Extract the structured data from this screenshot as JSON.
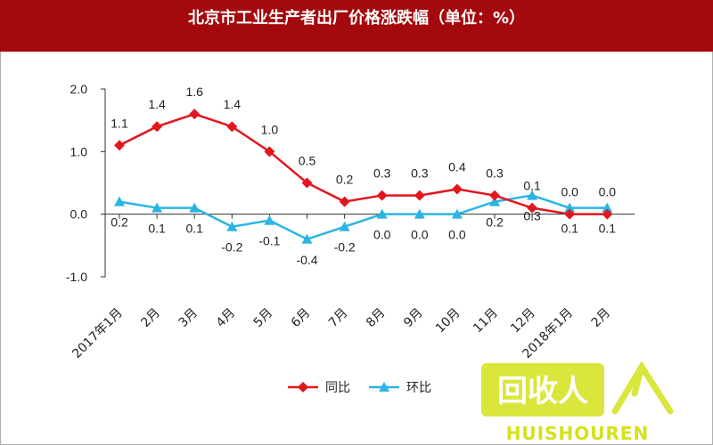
{
  "chart_data": {
    "type": "line",
    "title": "北京市工业生产者出厂价格涨跌幅（单位：%）",
    "categories": [
      "2017年1月",
      "2月",
      "3月",
      "4月",
      "5月",
      "6月",
      "7月",
      "8月",
      "9月",
      "10月",
      "11月",
      "12月",
      "2018年1月",
      "2月"
    ],
    "series": [
      {
        "name": "同比",
        "color": "#e2161e",
        "marker": "diamond",
        "values": [
          1.1,
          1.4,
          1.6,
          1.4,
          1.0,
          0.5,
          0.2,
          0.3,
          0.3,
          0.4,
          0.3,
          0.1,
          0.0,
          0.0
        ],
        "labels": [
          "1.1",
          "1.4",
          "1.6",
          "1.4",
          "1.0",
          "0.5",
          "0.2",
          "0.3",
          "0.3",
          "0.4",
          "0.3",
          "0.1",
          "0.0",
          "0.0"
        ]
      },
      {
        "name": "环比",
        "color": "#2ab5e3",
        "marker": "triangle",
        "values": [
          0.2,
          0.1,
          0.1,
          -0.2,
          -0.1,
          -0.4,
          -0.2,
          0.0,
          0.0,
          0.0,
          0.2,
          0.3,
          0.1,
          0.1
        ],
        "labels": [
          "0.2",
          "0.1",
          "0.1",
          "-0.2",
          "-0.1",
          "-0.4",
          "-0.2",
          "0.0",
          "0.0",
          "0.0",
          "0.2",
          "0.3",
          "0.1",
          "0.1"
        ]
      }
    ],
    "yticks": [
      "2.0",
      "1.0",
      "0.0",
      "-1.0"
    ],
    "ylim": [
      -1.0,
      2.0
    ],
    "grid": false,
    "legend_position": "bottom"
  },
  "watermark": {
    "text": "HUISHOUREN",
    "logo_text": "回收人"
  }
}
